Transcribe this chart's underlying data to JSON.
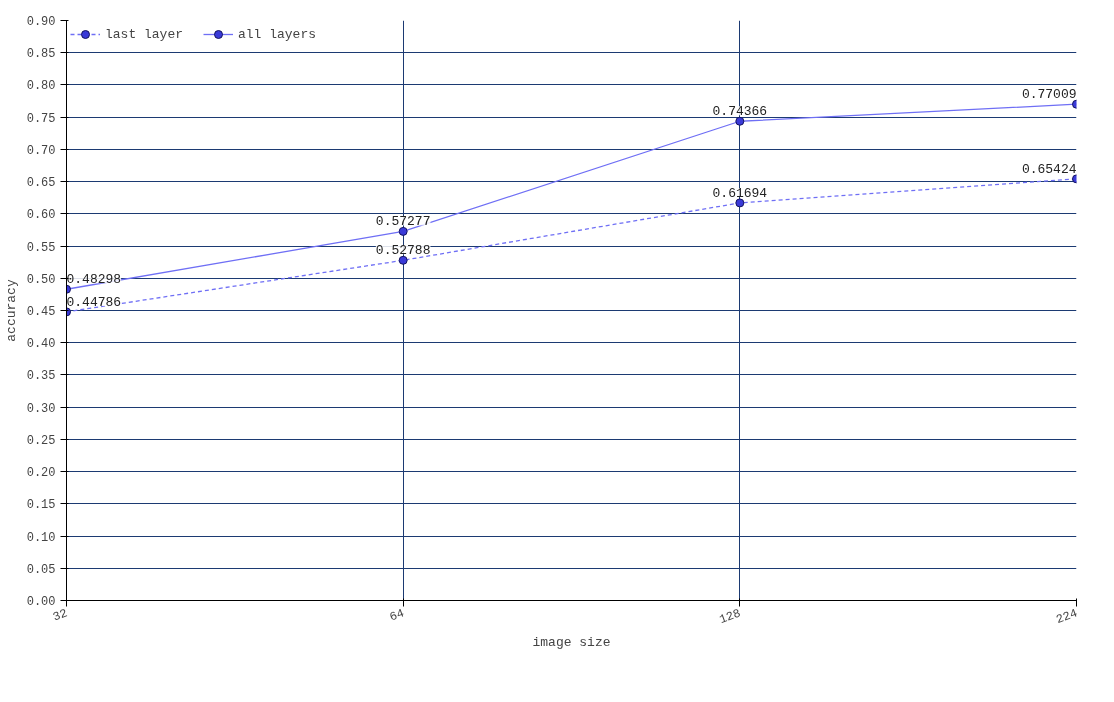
{
  "chart_data": {
    "type": "line",
    "xlabel": "image size",
    "ylabel": "accuracy",
    "categories": [
      "32",
      "64",
      "128",
      "224"
    ],
    "series": [
      {
        "name": "last layer",
        "color": "#6f6ff5",
        "line_style": "dashed",
        "values": [
          0.44786,
          0.52788,
          0.61694,
          0.65424
        ]
      },
      {
        "name": "all layers",
        "color": "#6f6ff5",
        "line_style": "solid",
        "values": [
          0.48298,
          0.57277,
          0.74366,
          0.77009
        ]
      }
    ],
    "ylim": [
      0,
      0.9
    ],
    "yticks": [
      {
        "value": 0,
        "label": "0.00"
      },
      {
        "value": 0.05,
        "label": "0.05"
      },
      {
        "value": 0.1,
        "label": "0.10"
      },
      {
        "value": 0.15,
        "label": "0.15"
      },
      {
        "value": 0.2,
        "label": "0.20"
      },
      {
        "value": 0.25,
        "label": "0.25"
      },
      {
        "value": 0.3,
        "label": "0.30"
      },
      {
        "value": 0.35,
        "label": "0.35"
      },
      {
        "value": 0.4,
        "label": "0.40"
      },
      {
        "value": 0.45,
        "label": "0.45"
      },
      {
        "value": 0.5,
        "label": "0.50"
      },
      {
        "value": 0.55,
        "label": "0.55"
      },
      {
        "value": 0.6,
        "label": "0.60"
      },
      {
        "value": 0.65,
        "label": "0.65"
      },
      {
        "value": 0.7,
        "label": "0.70"
      },
      {
        "value": 0.75,
        "label": "0.75"
      },
      {
        "value": 0.8,
        "label": "0.80"
      },
      {
        "value": 0.85,
        "label": "0.85"
      },
      {
        "value": 0.9,
        "label": "0.90"
      }
    ],
    "grid": true,
    "legend": "top left",
    "marker": "circle",
    "data_labels": true
  }
}
